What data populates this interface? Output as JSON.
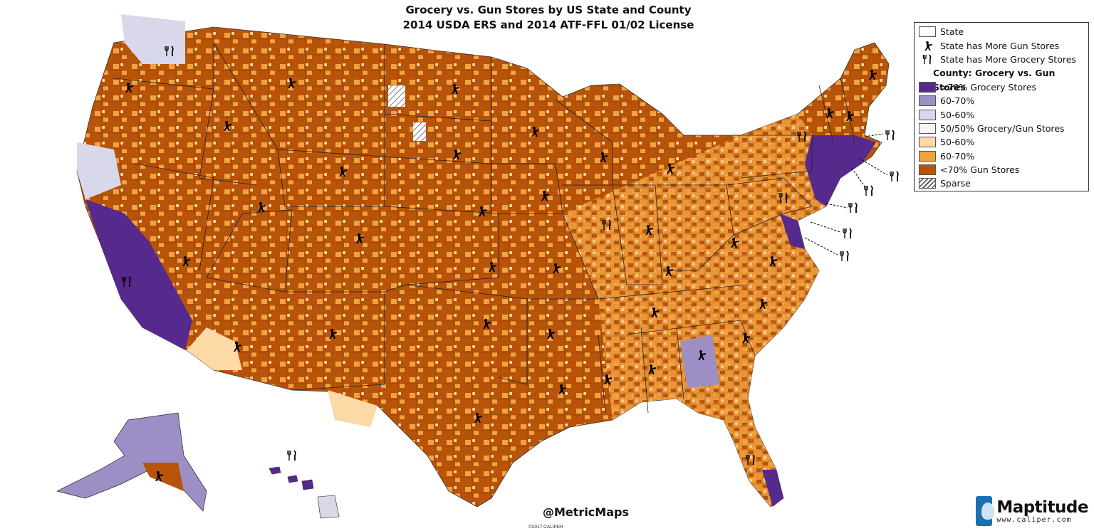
{
  "title": {
    "line1": "Grocery vs. Gun Stores by US State and County",
    "line2": "2014 USDA ERS and 2014 ATF-FFL 01/02 License"
  },
  "legend": {
    "state_label": "State",
    "gun_state_label": "State has More Gun Stores",
    "grocery_state_label": "State has More Grocery Stores",
    "county_header": "County: Grocery vs. Gun Stores",
    "classes": [
      {
        "label": ">70% Grocery Stores",
        "color": "#552a8c"
      },
      {
        "label": "60-70%",
        "color": "#9d8fc6"
      },
      {
        "label": "50-60%",
        "color": "#d8d8ea"
      },
      {
        "label": "50/50% Grocery/Gun Stores",
        "color": "#f5f5f5"
      },
      {
        "label": "50-60%",
        "color": "#fdd9a6"
      },
      {
        "label": "60-70%",
        "color": "#f2a240"
      },
      {
        "label": "<70% Gun Stores",
        "color": "#b8530a"
      },
      {
        "label": "Sparse",
        "color": "hatch"
      }
    ]
  },
  "colors": {
    "gun_dark": "#b8530a",
    "gun_mid": "#f2a240",
    "gun_light": "#fdd9a6",
    "even": "#f5f5f5",
    "grocery_light": "#d8d8ea",
    "grocery_mid": "#9d8fc6",
    "grocery_dark": "#552a8c"
  },
  "icons": {
    "gun_store": "gunman-icon",
    "grocery_store": "fork-knife-icon"
  },
  "credit": "@MetricMaps",
  "copyright": "©2017 CALIPER",
  "brand": {
    "name": "Maptitude",
    "url": "www.caliper.com"
  }
}
